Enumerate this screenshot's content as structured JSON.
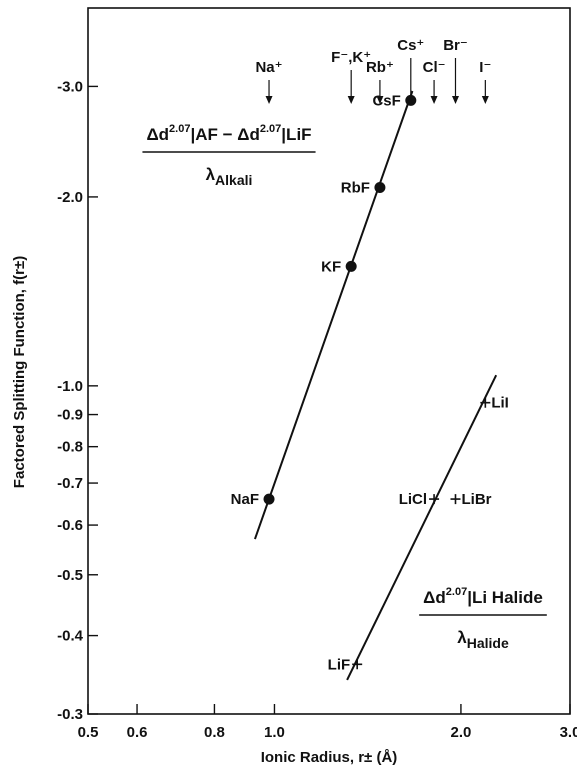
{
  "chart_data": {
    "type": "scatter",
    "xscale": "log",
    "yscale": "log",
    "xlim": [
      0.5,
      3.0
    ],
    "ylim": [
      -0.3,
      -4.0
    ],
    "xlabel": "Ionic Radius, r± (Å)",
    "ylabel": "Factored Splitting Function, f(r±)",
    "x_ticks": [
      {
        "value": 0.5,
        "label": "0.5"
      },
      {
        "value": 0.6,
        "label": "0.6"
      },
      {
        "value": 0.8,
        "label": "0.8"
      },
      {
        "value": 1.0,
        "label": "1.0"
      },
      {
        "value": 2.0,
        "label": "2.0"
      },
      {
        "value": 3.0,
        "label": "3.0"
      }
    ],
    "y_ticks": [
      {
        "value": -0.3,
        "label": "-0.3"
      },
      {
        "value": -0.4,
        "label": "-0.4"
      },
      {
        "value": -0.5,
        "label": "-0.5"
      },
      {
        "value": -0.6,
        "label": "-0.6"
      },
      {
        "value": -0.7,
        "label": "-0.7"
      },
      {
        "value": -0.8,
        "label": "-0.8"
      },
      {
        "value": -0.9,
        "label": "-0.9"
      },
      {
        "value": -1.0,
        "label": "-1.0"
      },
      {
        "value": -2.0,
        "label": "-2.0"
      },
      {
        "value": -3.0,
        "label": "-3.0"
      }
    ],
    "series": [
      {
        "points": [
          {
            "label": "NaF",
            "x": 0.98,
            "y": -0.66
          },
          {
            "label": "KF",
            "x": 1.33,
            "y": -1.55
          },
          {
            "label": "RbF",
            "x": 1.48,
            "y": -2.07
          },
          {
            "label": "CsF",
            "x": 1.66,
            "y": -2.85
          }
        ],
        "line": [
          [
            0.93,
            -0.57
          ],
          [
            1.67,
            -2.95
          ]
        ],
        "formula": {
          "num_left": "Δd",
          "sup1": "2.0",
          "sub1": "7",
          "mid": "|AF − Δd",
          "sup2": "2.0",
          "sub2": "7",
          "end": "|LiF",
          "den_main": "λ",
          "den_sub": "Alkali"
        }
      },
      {
        "points": [
          {
            "label": "LiF",
            "x": 1.36,
            "y": -0.36
          },
          {
            "label": "LiCl",
            "x": 1.81,
            "y": -0.66
          },
          {
            "label": "LiBr",
            "x": 1.96,
            "y": -0.66
          },
          {
            "label": "LiI",
            "x": 2.19,
            "y": -0.94
          }
        ],
        "line": [
          [
            1.31,
            -0.34
          ],
          [
            2.28,
            -1.04
          ]
        ],
        "formula": {
          "num_left": "Δd",
          "sup1": "2.0",
          "sub1": "7",
          "end": "|Li Halide",
          "den_main": "λ",
          "den_sub": "Halide"
        }
      }
    ],
    "ion_markers": [
      {
        "label": "Na⁺",
        "x": 0.98
      },
      {
        "label": "F⁻,K⁺",
        "x": 1.33
      },
      {
        "label": "Rb⁺",
        "x": 1.48
      },
      {
        "label": "Cs⁺",
        "x": 1.66
      },
      {
        "label": "Cl⁻",
        "x": 1.81
      },
      {
        "label": "Br⁻",
        "x": 1.96
      },
      {
        "label": "I⁻",
        "x": 2.19
      }
    ]
  }
}
